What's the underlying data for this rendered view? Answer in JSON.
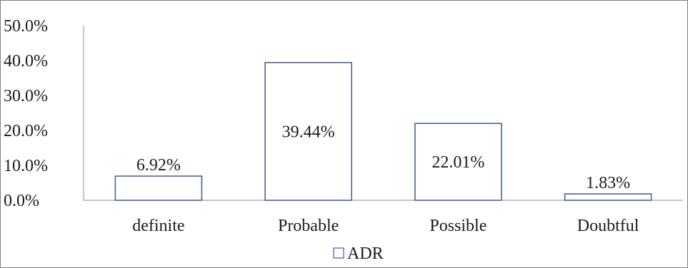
{
  "chart_data": {
    "type": "bar",
    "title": "",
    "xlabel": "",
    "ylabel": "",
    "categories": [
      "definite",
      "Probable",
      "Possible",
      "Doubtful"
    ],
    "series": [
      {
        "name": "ADR",
        "values": [
          6.92,
          39.44,
          22.01,
          1.83
        ],
        "value_labels": [
          "6.92%",
          "39.44%",
          "22.01%",
          "1.83%"
        ]
      }
    ],
    "ylim": [
      0,
      50
    ],
    "yticks": [
      0,
      10,
      20,
      30,
      40,
      50
    ],
    "ytick_labels": [
      "0.0%",
      "10.0%",
      "20.0%",
      "30.0%",
      "40.0%",
      "50.0%"
    ],
    "grid": false,
    "legend": "bottom-center",
    "colors": {
      "bar_fill": "#ffffff",
      "bar_stroke": "#3f5b8c",
      "axis": "#8c8c8c",
      "text": "#1a1a1a"
    }
  }
}
